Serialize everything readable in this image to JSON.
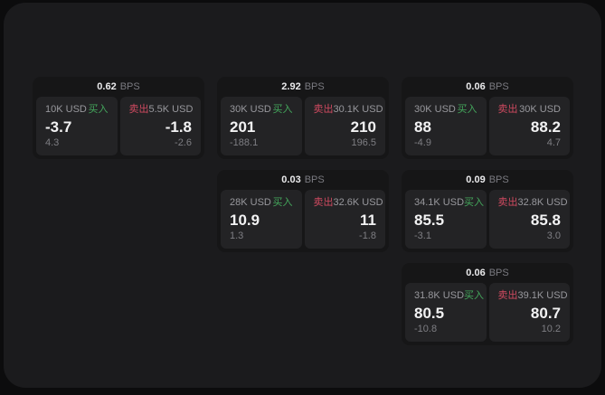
{
  "colors": {
    "page_bg": "#0c0c0d",
    "panel_bg": "#1b1b1d",
    "card_bg": "#161617",
    "tile_bg": "#232325",
    "buy": "#44a75c",
    "sell": "#cf4a60",
    "value_text": "#f2f2f3",
    "label_text": "#98989d",
    "sub_text": "#7e7e83",
    "unit_text": "#7a7a80"
  },
  "labels": {
    "buy": "买入",
    "sell": "卖出",
    "bps_unit": "BPS"
  },
  "cards": [
    {
      "row": 1,
      "col": 1,
      "spread": "0.62",
      "buy": {
        "amount": "10K USD",
        "price": "-3.7",
        "change": "4.3"
      },
      "sell": {
        "amount": "5.5K USD",
        "price": "-1.8",
        "change": "-2.6"
      }
    },
    {
      "row": 1,
      "col": 2,
      "spread": "2.92",
      "buy": {
        "amount": "30K USD",
        "price": "201",
        "change": "-188.1"
      },
      "sell": {
        "amount": "30.1K USD",
        "price": "210",
        "change": "196.5"
      }
    },
    {
      "row": 1,
      "col": 3,
      "spread": "0.06",
      "buy": {
        "amount": "30K USD",
        "price": "88",
        "change": "-4.9"
      },
      "sell": {
        "amount": "30K USD",
        "price": "88.2",
        "change": "4.7"
      }
    },
    {
      "row": 2,
      "col": 2,
      "spread": "0.03",
      "buy": {
        "amount": "28K USD",
        "price": "10.9",
        "change": "1.3"
      },
      "sell": {
        "amount": "32.6K USD",
        "price": "11",
        "change": "-1.8"
      }
    },
    {
      "row": 2,
      "col": 3,
      "spread": "0.09",
      "buy": {
        "amount": "34.1K USD",
        "price": "85.5",
        "change": "-3.1"
      },
      "sell": {
        "amount": "32.8K USD",
        "price": "85.8",
        "change": "3.0"
      }
    },
    {
      "row": 3,
      "col": 3,
      "spread": "0.06",
      "buy": {
        "amount": "31.8K USD",
        "price": "80.5",
        "change": "-10.8"
      },
      "sell": {
        "amount": "39.1K USD",
        "price": "80.7",
        "change": "10.2"
      }
    }
  ]
}
